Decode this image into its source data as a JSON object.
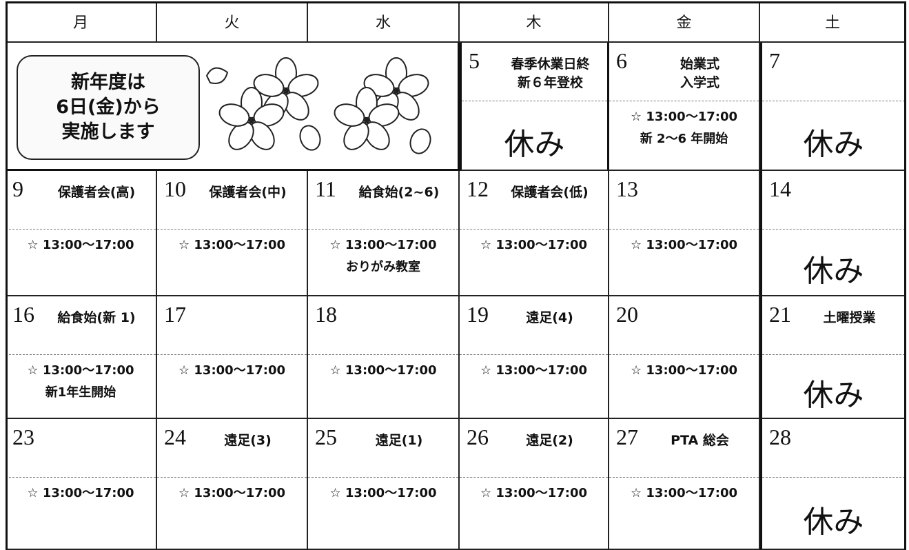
{
  "days": [
    "月",
    "火",
    "水",
    "木",
    "金",
    "土"
  ],
  "notice": [
    "新年度は",
    "6日(金)から",
    "実施します"
  ],
  "weeks": [
    {
      "cells": [
        {
          "date": 5,
          "top": [
            "春季休業日終",
            "新６年登校"
          ],
          "holiday": "休み"
        },
        {
          "date": 6,
          "top": [
            "始業式",
            "入学式"
          ],
          "bottom": [
            "☆ 13:00〜17:00",
            "新 2〜6 年開始"
          ]
        },
        {
          "date": 7,
          "holiday": "休み"
        }
      ]
    },
    {
      "cells": [
        {
          "date": 9,
          "top": [
            "保護者会(高)"
          ],
          "bottom": [
            "☆ 13:00〜17:00"
          ]
        },
        {
          "date": 10,
          "top": [
            "保護者会(中)"
          ],
          "bottom": [
            "☆ 13:00〜17:00"
          ]
        },
        {
          "date": 11,
          "top": [
            "給食始(2~6)"
          ],
          "bottom": [
            "☆ 13:00〜17:00",
            "おりがみ教室"
          ]
        },
        {
          "date": 12,
          "top": [
            "保護者会(低)"
          ],
          "bottom": [
            "☆ 13:00〜17:00"
          ]
        },
        {
          "date": 13,
          "bottom": [
            "☆ 13:00〜17:00"
          ]
        },
        {
          "date": 14,
          "holiday": "休み"
        }
      ]
    },
    {
      "cells": [
        {
          "date": 16,
          "top": [
            "給食始(新 1)"
          ],
          "bottom": [
            "☆ 13:00〜17:00",
            "新1年生開始"
          ]
        },
        {
          "date": 17,
          "bottom": [
            "☆ 13:00〜17:00"
          ]
        },
        {
          "date": 18,
          "bottom": [
            "☆ 13:00〜17:00"
          ]
        },
        {
          "date": 19,
          "top": [
            "遠足(4)"
          ],
          "bottom": [
            "☆ 13:00〜17:00"
          ]
        },
        {
          "date": 20,
          "bottom": [
            "☆ 13:00〜17:00"
          ]
        },
        {
          "date": 21,
          "top": [
            "土曜授業"
          ],
          "holiday": "休み"
        }
      ]
    },
    {
      "cells": [
        {
          "date": 23,
          "bottom": [
            "☆ 13:00〜17:00"
          ]
        },
        {
          "date": 24,
          "top": [
            "遠足(3)"
          ],
          "bottom": [
            "☆ 13:00〜17:00"
          ]
        },
        {
          "date": 25,
          "top": [
            "遠足(1)"
          ],
          "bottom": [
            "☆ 13:00〜17:00"
          ]
        },
        {
          "date": 26,
          "top": [
            "遠足(2)"
          ],
          "bottom": [
            "☆ 13:00〜17:00"
          ]
        },
        {
          "date": 27,
          "top": [
            "PTA 総会"
          ],
          "bottom": [
            "☆ 13:00〜17:00"
          ]
        },
        {
          "date": 28,
          "holiday": "休み"
        }
      ]
    }
  ]
}
